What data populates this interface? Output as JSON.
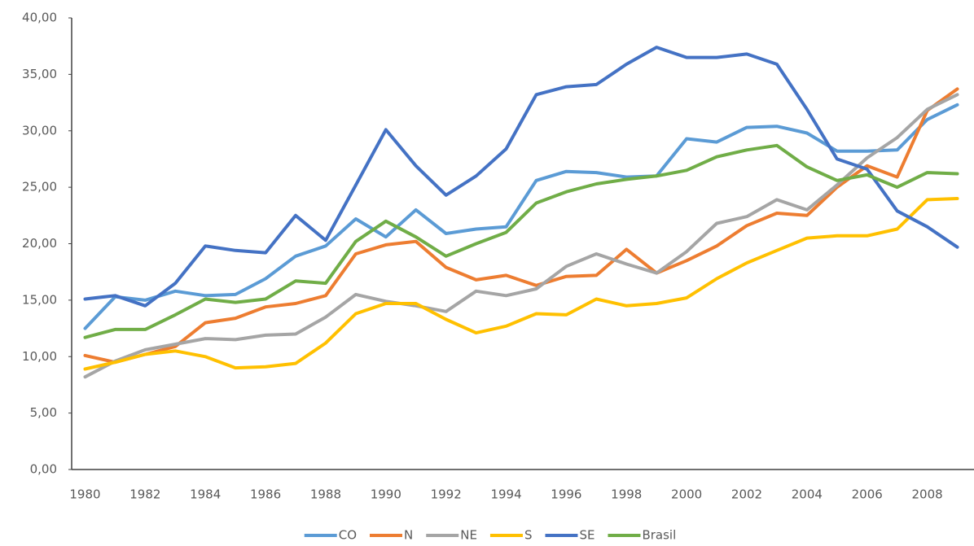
{
  "chart_data": {
    "type": "line",
    "categories": [
      "1980",
      null,
      "1982",
      null,
      "1984",
      null,
      "1986",
      null,
      "1988",
      null,
      "1990",
      null,
      "1992",
      null,
      "1994",
      null,
      "1996",
      null,
      "1998",
      null,
      "2000",
      null,
      "2002",
      null,
      "2004",
      null,
      "2006",
      null,
      "2008",
      null
    ],
    "series": [
      {
        "name": "CO",
        "color": "#5b9bd5",
        "values": [
          12.5,
          15.3,
          15.0,
          15.8,
          15.4,
          15.5,
          16.9,
          18.9,
          19.8,
          22.2,
          20.6,
          23.0,
          20.9,
          21.3,
          21.5,
          25.6,
          26.4,
          26.3,
          25.9,
          26.0,
          29.3,
          29.0,
          30.3,
          30.4,
          29.8,
          28.2,
          28.2,
          28.3,
          31.0,
          32.3
        ]
      },
      {
        "name": "N",
        "color": "#ed7d31",
        "values": [
          10.1,
          9.5,
          10.2,
          10.9,
          13.0,
          13.4,
          14.4,
          14.7,
          15.4,
          19.1,
          19.9,
          20.2,
          17.9,
          16.8,
          17.2,
          16.3,
          17.1,
          17.2,
          19.5,
          17.4,
          18.5,
          19.8,
          21.6,
          22.7,
          22.5,
          25.0,
          26.9,
          25.9,
          31.8,
          33.7
        ]
      },
      {
        "name": "NE",
        "color": "#a5a5a5",
        "values": [
          8.2,
          9.6,
          10.6,
          11.1,
          11.6,
          11.5,
          11.9,
          12.0,
          13.5,
          15.5,
          14.9,
          14.5,
          14.0,
          15.8,
          15.4,
          16.0,
          18.0,
          19.1,
          18.2,
          17.4,
          19.3,
          21.8,
          22.4,
          23.9,
          23.0,
          25.2,
          27.6,
          29.4,
          31.9,
          33.2
        ]
      },
      {
        "name": "S",
        "color": "#ffc000",
        "values": [
          8.9,
          9.5,
          10.2,
          10.5,
          10.0,
          9.0,
          9.1,
          9.4,
          11.2,
          13.8,
          14.7,
          14.7,
          13.3,
          12.1,
          12.7,
          13.8,
          13.7,
          15.1,
          14.5,
          14.7,
          15.2,
          16.9,
          18.3,
          19.4,
          20.5,
          20.7,
          20.7,
          21.3,
          23.9,
          24.0
        ]
      },
      {
        "name": "SE",
        "color": "#4472c4",
        "values": [
          15.1,
          15.4,
          14.5,
          16.5,
          19.8,
          19.4,
          19.2,
          22.5,
          20.3,
          25.2,
          30.1,
          26.9,
          24.3,
          26.0,
          28.4,
          33.2,
          33.9,
          34.1,
          35.9,
          37.4,
          36.5,
          36.5,
          36.8,
          35.9,
          31.9,
          27.5,
          26.6,
          22.9,
          21.5,
          19.7
        ]
      },
      {
        "name": "Brasil",
        "color": "#70ad47",
        "values": [
          11.7,
          12.4,
          12.4,
          13.7,
          15.1,
          14.8,
          15.1,
          16.7,
          16.5,
          20.2,
          22.0,
          20.6,
          18.9,
          20.0,
          21.0,
          23.6,
          24.6,
          25.3,
          25.7,
          26.0,
          26.5,
          27.7,
          28.3,
          28.7,
          26.8,
          25.6,
          26.1,
          25.0,
          26.3,
          26.2
        ]
      }
    ],
    "ylim": [
      0,
      40
    ],
    "yticks": [
      {
        "value": 0,
        "label": "0,00"
      },
      {
        "value": 5,
        "label": "5,00"
      },
      {
        "value": 10,
        "label": "10,00"
      },
      {
        "value": 15,
        "label": "15,00"
      },
      {
        "value": 20,
        "label": "20,00"
      },
      {
        "value": 25,
        "label": "25,00"
      },
      {
        "value": 30,
        "label": "30,00"
      },
      {
        "value": 35,
        "label": "35,00"
      },
      {
        "value": 40,
        "label": "40,00"
      }
    ],
    "grid": false,
    "legend": "bottom"
  }
}
